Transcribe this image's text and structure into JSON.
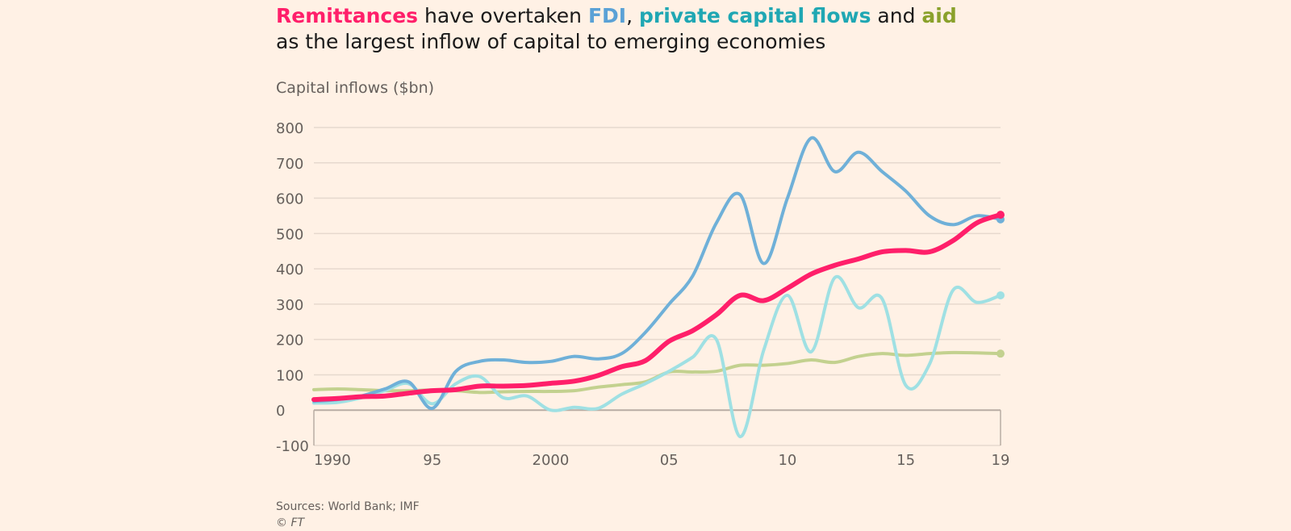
{
  "title": {
    "parts": [
      {
        "text": "Remittances",
        "color": "#ff1f6a",
        "bold": true
      },
      {
        "text": " have overtaken ",
        "color": "#1a1a1a",
        "bold": false
      },
      {
        "text": "FDI",
        "color": "#5aa1d6",
        "bold": true
      },
      {
        "text": ", ",
        "color": "#1a1a1a",
        "bold": false
      },
      {
        "text": "private capital flows",
        "color": "#1fa7b3",
        "bold": true
      },
      {
        "text": " and ",
        "color": "#1a1a1a",
        "bold": false
      },
      {
        "text": "aid",
        "color": "#8aa12b",
        "bold": true
      },
      {
        "text": " as the largest inflow of capital to emerging economies",
        "color": "#1a1a1a",
        "bold": false
      }
    ]
  },
  "subtitle": "Capital inflows ($bn)",
  "source": "Sources: World Bank; IMF",
  "copyright": "© FT",
  "chart_data": {
    "type": "line",
    "ylabel": "Capital inflows ($bn)",
    "xlim": [
      1990,
      2019
    ],
    "ylim": [
      -100,
      800
    ],
    "yticks": [
      -100,
      0,
      100,
      200,
      300,
      400,
      500,
      600,
      700,
      800
    ],
    "ytick_labels": [
      "-100",
      "0",
      "100",
      "200",
      "300",
      "400",
      "500",
      "600",
      "700",
      "800"
    ],
    "xticks": [
      1990,
      1995,
      2000,
      2005,
      2010,
      2015,
      2019
    ],
    "xtick_labels": [
      "1990",
      "95",
      "2000",
      "05",
      "10",
      "15",
      "19"
    ],
    "grid": true,
    "x": [
      1990,
      1991,
      1992,
      1993,
      1994,
      1995,
      1996,
      1997,
      1998,
      1999,
      2000,
      2001,
      2002,
      2003,
      2004,
      2005,
      2006,
      2007,
      2008,
      2009,
      2010,
      2011,
      2012,
      2013,
      2014,
      2015,
      2016,
      2017,
      2018,
      2019
    ],
    "series": [
      {
        "name": "aid",
        "color": "#c3d18f",
        "width": 4,
        "end_marker": true,
        "values": [
          58,
          60,
          58,
          55,
          55,
          57,
          55,
          50,
          52,
          53,
          53,
          55,
          65,
          72,
          80,
          108,
          108,
          110,
          127,
          127,
          132,
          142,
          135,
          152,
          160,
          155,
          160,
          163,
          162,
          160
        ]
      },
      {
        "name": "private capital flows",
        "color": "#9fe0e3",
        "width": 4,
        "end_marker": true,
        "values": [
          20,
          22,
          35,
          55,
          75,
          18,
          75,
          95,
          35,
          40,
          0,
          8,
          5,
          45,
          75,
          110,
          150,
          200,
          -75,
          170,
          325,
          165,
          375,
          290,
          315,
          70,
          130,
          340,
          305,
          325
        ]
      },
      {
        "name": "FDI",
        "color": "#6fb0d8",
        "width": 4,
        "end_marker": true,
        "values": [
          25,
          30,
          40,
          60,
          80,
          5,
          110,
          138,
          142,
          135,
          138,
          152,
          145,
          160,
          220,
          300,
          380,
          530,
          610,
          415,
          600,
          770,
          675,
          730,
          675,
          620,
          550,
          525,
          550,
          540
        ]
      },
      {
        "name": "Remittances",
        "color": "#ff1f6a",
        "width": 6,
        "end_marker": true,
        "values": [
          30,
          33,
          38,
          40,
          48,
          55,
          58,
          68,
          68,
          70,
          76,
          82,
          98,
          123,
          140,
          195,
          225,
          270,
          325,
          310,
          345,
          385,
          410,
          428,
          448,
          452,
          448,
          480,
          530,
          553
        ]
      }
    ]
  }
}
